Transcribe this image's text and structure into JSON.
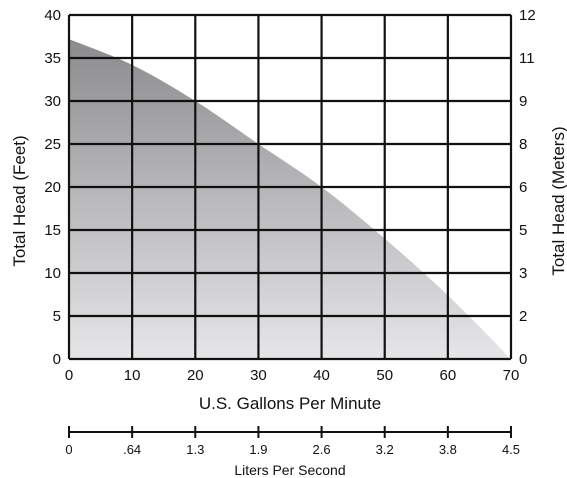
{
  "chart_data": {
    "type": "area",
    "title": "",
    "xlabel": "U.S. Gallons Per Minute",
    "ylabel_left": "Total Head (Feet)",
    "ylabel_right": "Total Head (Meters)",
    "xlim": [
      0,
      70
    ],
    "ylim_left": [
      0,
      40
    ],
    "ylim_right": [
      0,
      12
    ],
    "grid": true,
    "x_ticks": [
      "0",
      "10",
      "20",
      "30",
      "40",
      "50",
      "60",
      "70"
    ],
    "y_left_ticks": [
      "0",
      "5",
      "10",
      "15",
      "20",
      "25",
      "30",
      "35",
      "40"
    ],
    "y_right_ticks": [
      "0",
      "2",
      "3",
      "5",
      "6",
      "8",
      "9",
      "11",
      "12"
    ],
    "series": [
      {
        "x": [
          0,
          10,
          20,
          30,
          40,
          50,
          60,
          70
        ],
        "y": [
          37.2,
          34.2,
          30,
          25,
          20,
          14,
          7.4,
          0
        ]
      }
    ],
    "secondary_x_axis": {
      "label": "Liters Per Second",
      "ticks": [
        "0",
        ".64",
        "1.3",
        "1.9",
        "2.6",
        "3.2",
        "3.8",
        "4.5"
      ]
    },
    "fill_colors": {
      "curve_top": "#8c8c8e",
      "curve_bottom": "#e6e6e8",
      "grid": "#111111"
    }
  }
}
